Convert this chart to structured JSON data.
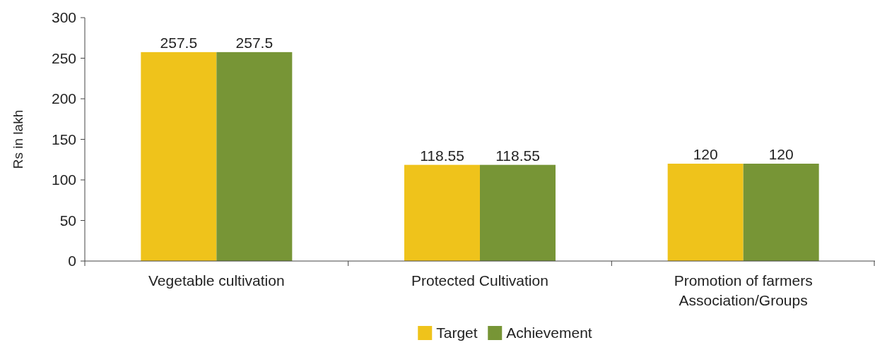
{
  "chart_data": {
    "type": "bar",
    "ylabel": "Rs in lakh",
    "categories": [
      "Vegetable cultivation",
      "Protected Cultivation",
      "Promotion of farmers Association/Groups"
    ],
    "series": [
      {
        "name": "Target",
        "color": "#efc31b",
        "values": [
          257.5,
          118.55,
          120
        ]
      },
      {
        "name": "Achievement",
        "color": "#779536",
        "values": [
          257.5,
          118.55,
          120
        ]
      }
    ],
    "ylim": [
      0,
      300
    ],
    "yticks": [
      0,
      50,
      100,
      150,
      200,
      250,
      300
    ],
    "data_labels": true,
    "legend": "bottom",
    "grid": false
  }
}
